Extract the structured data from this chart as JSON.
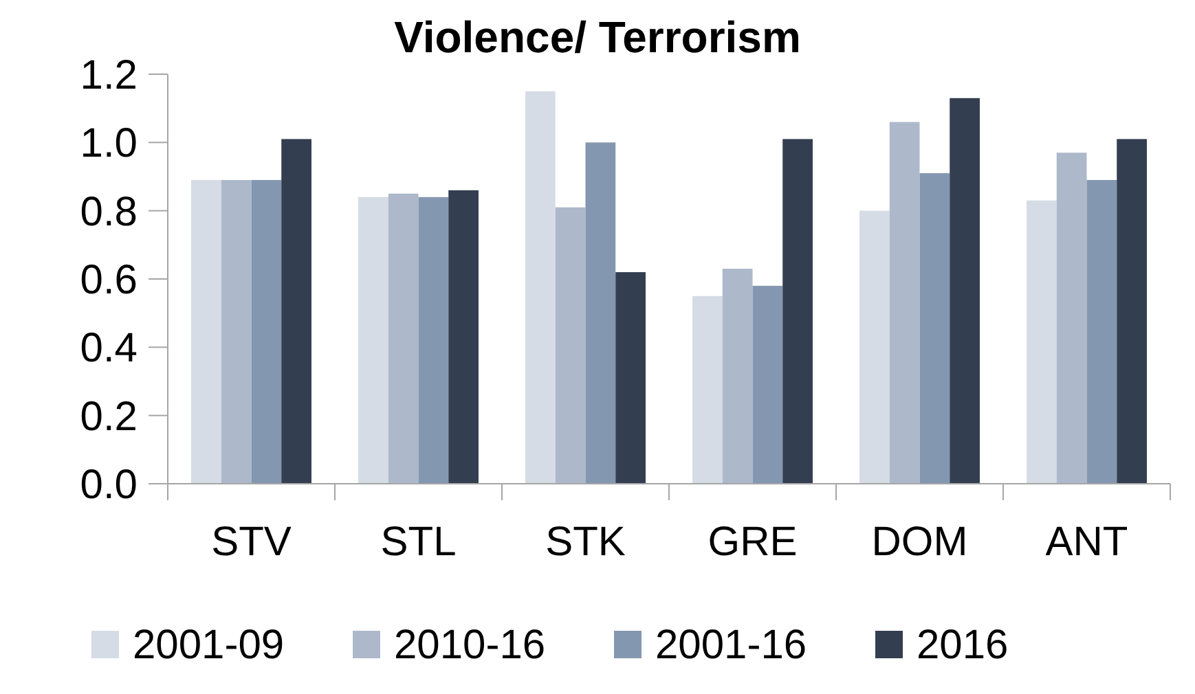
{
  "chart_data": {
    "type": "bar",
    "title": "Violence/ Terrorism",
    "categories": [
      "STV",
      "STL",
      "STK",
      "GRE",
      "DOM",
      "ANT"
    ],
    "series": [
      {
        "name": "2001-09",
        "color": "#d6dce5",
        "values": [
          0.89,
          0.84,
          1.15,
          0.55,
          0.8,
          0.83
        ]
      },
      {
        "name": "2010-16",
        "color": "#adb9ca",
        "values": [
          0.89,
          0.85,
          0.81,
          0.63,
          1.06,
          0.97
        ]
      },
      {
        "name": "2001-16",
        "color": "#8497b0",
        "values": [
          0.89,
          0.84,
          1.0,
          0.58,
          0.91,
          0.89
        ]
      },
      {
        "name": "2016",
        "color": "#333f50",
        "values": [
          1.01,
          0.86,
          0.62,
          1.01,
          1.13,
          1.01
        ]
      }
    ],
    "ylim": [
      0,
      1.2
    ],
    "yticks": [
      {
        "value": 0,
        "label": "0.0"
      },
      {
        "value": 0.2,
        "label": "0.2"
      },
      {
        "value": 0.4,
        "label": "0.4"
      },
      {
        "value": 0.6,
        "label": "0.6"
      },
      {
        "value": 0.8,
        "label": "0.8"
      },
      {
        "value": 1,
        "label": "1.0"
      },
      {
        "value": 1.2,
        "label": "1.2"
      }
    ],
    "grid": false,
    "legend": "bottom"
  }
}
